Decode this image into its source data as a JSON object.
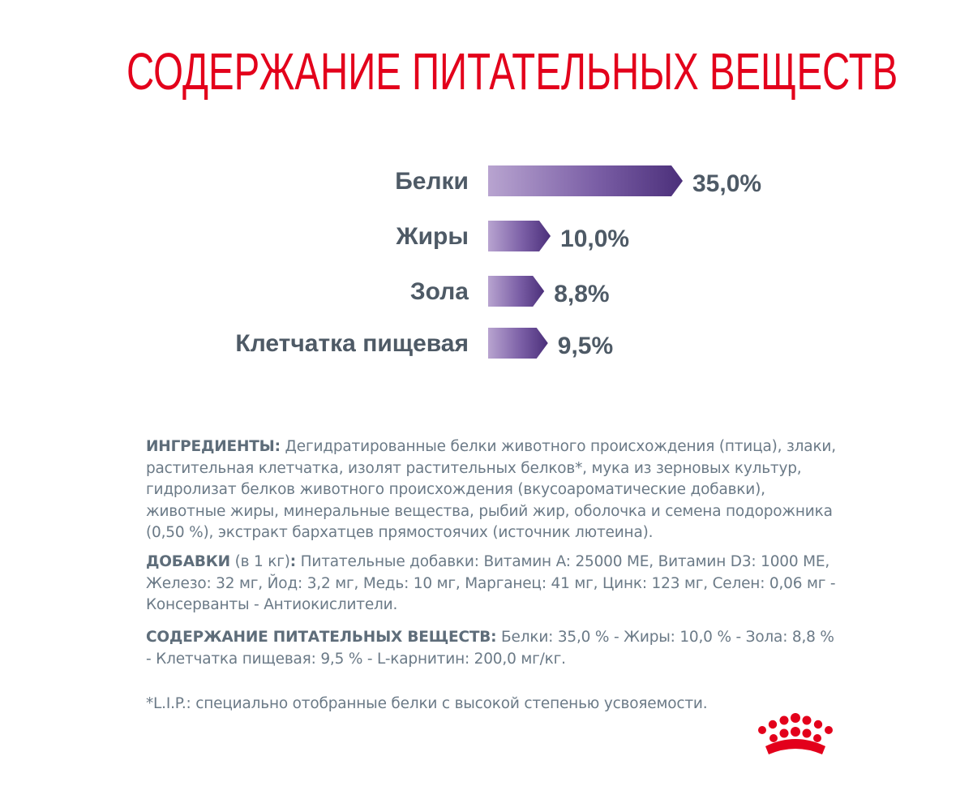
{
  "title": "СОДЕРЖАНИЕ ПИТАТЕЛЬНЫХ ВЕЩЕСТВ",
  "chart_data": {
    "type": "bar",
    "orientation": "horizontal",
    "categories": [
      "Белки",
      "Жиры",
      "Зола",
      "Клетчатка пищевая"
    ],
    "values": [
      35.0,
      10.0,
      8.8,
      9.5
    ],
    "value_labels": [
      "35,0%",
      "10,0%",
      "8,8%",
      "9,5%"
    ],
    "unit": "%",
    "colors": {
      "bar_start": "#b8a4d0",
      "bar_end": "#4b2f7a",
      "label": "#4e5a66"
    }
  },
  "ingredients": {
    "label": "ИНГРЕДИЕНТЫ:",
    "text": " Дегидратированные белки животного происхождения (птица), злаки, растительная клетчатка, изолят растительных белков*, мука из зерновых культур, гидролизат белков животного происхождения (вкусоароматические добавки), животные жиры, минеральные вещества, рыбий жир, оболочка и семена подорожника (0,50 %), экстракт бархатцев прямостоячих (источник лютеина)."
  },
  "additives": {
    "label": "ДОБАВКИ",
    "unit_note": " (в 1 кг)",
    "colon": ":",
    "text": " Питательные добавки: Витамин A: 25000 МЕ, Витамин D3: 1000 МЕ, Железо: 32 мг, Йод: 3,2 мг, Медь: 10 мг, Марганец: 41 мг, Цинк: 123 мг, Селен: 0,06 мг - Консерванты - Антиокислители."
  },
  "composition": {
    "label": "СОДЕРЖАНИЕ ПИТАТЕЛЬНЫХ ВЕЩЕСТВ:",
    "text": " Белки: 35,0 % - Жиры: 10,0 % - Зола: 8,8 % - Клетчатка пищевая: 9,5 % - L-карнитин: 200,0 мг/кг."
  },
  "footnote": "*L.I.P.: специально отобранные белки с высокой степенью усвояемости.",
  "logo": {
    "icon": "crown-icon",
    "color": "#e3001b"
  }
}
